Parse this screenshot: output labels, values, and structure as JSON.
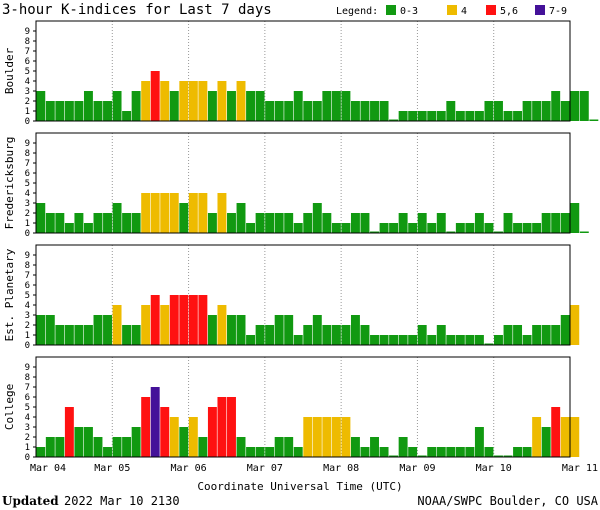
{
  "chart_data": {
    "type": "bar",
    "title": "3-hour K-indices for Last 7 days",
    "legend": {
      "label": "Legend:",
      "placement": "top-right",
      "items": [
        {
          "label": "0-3",
          "color": "#119911",
          "range": [
            0,
            3
          ]
        },
        {
          "label": "4",
          "color": "#eebb00",
          "range": [
            4,
            4
          ]
        },
        {
          "label": "5,6",
          "color": "#ff1111",
          "range": [
            5,
            6
          ]
        },
        {
          "label": "7-9",
          "color": "#441199",
          "range": [
            7,
            9
          ]
        }
      ]
    },
    "xlabel": "Coordinate Universal Time (UTC)",
    "x_tick_labels": [
      "Mar 04",
      "Mar 05",
      "Mar 06",
      "Mar 07",
      "Mar 08",
      "Mar 09",
      "Mar 10",
      "Mar 11"
    ],
    "bins_per_day": 8,
    "ylim": [
      0,
      9
    ],
    "y_tick_labels": [
      "0",
      "1",
      "2",
      "3",
      "4",
      "5",
      "6",
      "7",
      "8",
      "9"
    ],
    "panels": [
      {
        "name": "Boulder",
        "values": [
          3,
          2,
          2,
          2,
          2,
          3,
          2,
          2,
          3,
          1,
          3,
          4,
          5,
          4,
          3,
          4,
          4,
          4,
          3,
          4,
          3,
          4,
          3,
          3,
          2,
          2,
          2,
          3,
          2,
          2,
          3,
          3,
          3,
          2,
          2,
          2,
          2,
          0,
          1,
          1,
          1,
          1,
          1,
          2,
          1,
          1,
          1,
          2,
          2,
          1,
          1,
          2,
          2,
          2,
          3,
          2,
          3,
          3,
          0
        ]
      },
      {
        "name": "Fredericksburg",
        "values": [
          3,
          2,
          2,
          1,
          2,
          1,
          2,
          2,
          3,
          2,
          2,
          4,
          4,
          4,
          4,
          3,
          4,
          4,
          2,
          4,
          2,
          3,
          1,
          2,
          2,
          2,
          2,
          1,
          2,
          3,
          2,
          1,
          1,
          2,
          2,
          0,
          1,
          1,
          2,
          1,
          2,
          1,
          2,
          0,
          1,
          1,
          2,
          1,
          0,
          2,
          1,
          1,
          1,
          2,
          2,
          2,
          3,
          0
        ]
      },
      {
        "name": "Est. Planetary",
        "values": [
          3,
          3,
          2,
          2,
          2,
          2,
          3,
          3,
          4,
          2,
          2,
          4,
          5,
          4,
          5,
          5,
          5,
          5,
          3,
          4,
          3,
          3,
          1,
          2,
          2,
          3,
          3,
          1,
          2,
          3,
          2,
          2,
          2,
          3,
          2,
          1,
          1,
          1,
          1,
          1,
          2,
          1,
          2,
          1,
          1,
          1,
          1,
          0,
          1,
          2,
          2,
          1,
          2,
          2,
          2,
          3,
          4
        ]
      },
      {
        "name": "College",
        "values": [
          1,
          2,
          2,
          5,
          3,
          3,
          2,
          1,
          2,
          2,
          3,
          6,
          7,
          5,
          4,
          3,
          4,
          2,
          5,
          6,
          6,
          2,
          1,
          1,
          1,
          2,
          2,
          1,
          4,
          4,
          4,
          4,
          4,
          2,
          1,
          2,
          1,
          0,
          2,
          1,
          0,
          1,
          1,
          1,
          1,
          1,
          3,
          1,
          0,
          0,
          1,
          1,
          4,
          3,
          5,
          4,
          4
        ]
      }
    ]
  },
  "footer": {
    "updated_label": "Updated",
    "updated_value": "2022 Mar 10 2130",
    "credit": "NOAA/SWPC Boulder, CO USA"
  }
}
